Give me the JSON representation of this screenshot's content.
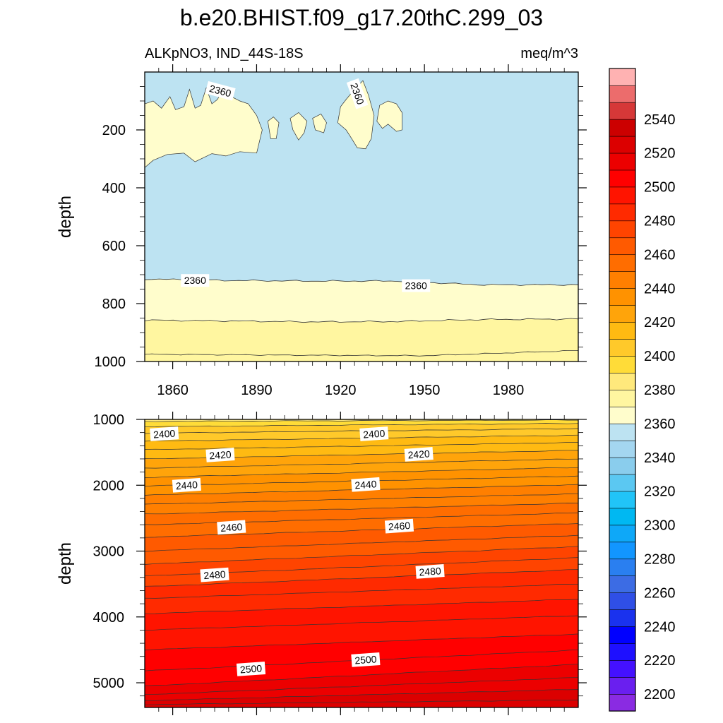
{
  "title": "b.e20.BHIST.f09_g17.20thC.299_03",
  "subtitle_left": "ALKpNO3, IND_44S-18S",
  "subtitle_right": "meq/m^3",
  "chart_data": [
    {
      "type": "heatmap",
      "panel": "upper",
      "variable": "ALKpNO3",
      "region": "IND_44S-18S",
      "units": "meq/m^3",
      "xlabel": "",
      "ylabel": "depth",
      "xlim": [
        1850,
        2005
      ],
      "ylim": [
        1000,
        0
      ],
      "x_ticks": [
        1860,
        1890,
        1920,
        1950,
        1980
      ],
      "y_ticks": [
        200,
        400,
        600,
        800,
        1000
      ],
      "bands": [
        {
          "range": [
            2350,
            2360
          ],
          "region": "background 0–720 m"
        },
        {
          "range": [
            2360,
            2370
          ],
          "region": "patches 100–330 m; layer 720–860 m"
        },
        {
          "range": [
            2370,
            2380
          ],
          "region": "layer 860–1000 m"
        }
      ],
      "contour_lines": [
        {
          "level": 2360,
          "x": [
            1850,
            1880,
            1910,
            1940,
            1970,
            2005
          ],
          "y": [
            715,
            720,
            722,
            722,
            735,
            735
          ]
        },
        {
          "level": 2380,
          "x": [
            1850,
            1880,
            1910,
            1940,
            1970,
            2005
          ],
          "y": [
            857,
            860,
            863,
            862,
            855,
            853
          ]
        }
      ],
      "contour_labels": [
        {
          "text": "2360",
          "x": 1877,
          "y": 65
        },
        {
          "text": "2360",
          "x": 1926,
          "y": 75
        },
        {
          "text": "2360",
          "x": 1868,
          "y": 720
        },
        {
          "text": "2360",
          "x": 1947,
          "y": 738
        }
      ]
    },
    {
      "type": "heatmap",
      "panel": "lower",
      "xlabel": "",
      "ylabel": "depth",
      "xlim": [
        1850,
        2005
      ],
      "ylim": [
        5375,
        1000
      ],
      "y_ticks": [
        1000,
        2000,
        3000,
        4000,
        5000
      ],
      "contour_levels": [
        2390,
        2395,
        2400,
        2405,
        2410,
        2415,
        2420,
        2425,
        2430,
        2435,
        2440,
        2445,
        2450,
        2455,
        2460,
        2465,
        2470,
        2475,
        2480,
        2485,
        2490,
        2495,
        2500,
        2505,
        2510,
        2515,
        2520
      ],
      "contour_depth_at_1850": [
        1030,
        1110,
        1210,
        1330,
        1460,
        1600,
        1740,
        1880,
        2010,
        2150,
        2290,
        2440,
        2600,
        2790,
        3000,
        3200,
        3380,
        3540,
        3720,
        3950,
        4200,
        4500,
        4820,
        5050,
        5180,
        5270,
        5330
      ],
      "contour_depth_at_2005": [
        1010,
        1060,
        1140,
        1240,
        1350,
        1470,
        1600,
        1730,
        1860,
        1990,
        2130,
        2270,
        2420,
        2580,
        2760,
        2930,
        3100,
        3280,
        3500,
        3730,
        3980,
        4260,
        4500,
        4720,
        4920,
        5100,
        5260
      ],
      "contour_labels": [
        {
          "text": "2400",
          "x": 1857,
          "y": 1220
        },
        {
          "text": "2400",
          "x": 1932,
          "y": 1220
        },
        {
          "text": "2420",
          "x": 1877,
          "y": 1540
        },
        {
          "text": "2420",
          "x": 1948,
          "y": 1530
        },
        {
          "text": "2440",
          "x": 1865,
          "y": 2000
        },
        {
          "text": "2440",
          "x": 1929,
          "y": 1990
        },
        {
          "text": "2460",
          "x": 1881,
          "y": 2640
        },
        {
          "text": "2460",
          "x": 1941,
          "y": 2620
        },
        {
          "text": "2480",
          "x": 1875,
          "y": 3360
        },
        {
          "text": "2480",
          "x": 1952,
          "y": 3310
        },
        {
          "text": "2500",
          "x": 1888,
          "y": 4790
        },
        {
          "text": "2500",
          "x": 1929,
          "y": 4650
        }
      ]
    }
  ],
  "colorbar": {
    "min": 2190,
    "step": 10,
    "labels": [
      "2200",
      "2220",
      "2240",
      "2260",
      "2280",
      "2300",
      "2320",
      "2340",
      "2360",
      "2380",
      "2400",
      "2420",
      "2440",
      "2460",
      "2480",
      "2500",
      "2520",
      "2540"
    ],
    "colors": [
      "#8a2be2",
      "#6a1fef",
      "#4411ff",
      "#1e10ff",
      "#0000ff",
      "#1a32ee",
      "#2f4fe6",
      "#3c6ce4",
      "#2a7ff0",
      "#1296ff",
      "#0ea8f8",
      "#00b8f2",
      "#21c4f8",
      "#5bc8f2",
      "#8acded",
      "#a4d6f0",
      "#bde3f2",
      "#fffdcc",
      "#fff6a0",
      "#ffe97c",
      "#ffdc38",
      "#ffc92a",
      "#ffba12",
      "#ffa40a",
      "#ff9200",
      "#ff7f00",
      "#ff6d00",
      "#ff5a00",
      "#ff4400",
      "#ff2a00",
      "#ff1400",
      "#ff0000",
      "#ec0000",
      "#dc0000",
      "#cc0000",
      "#d63838",
      "#ec6c6c",
      "#ffb2b2"
    ]
  }
}
